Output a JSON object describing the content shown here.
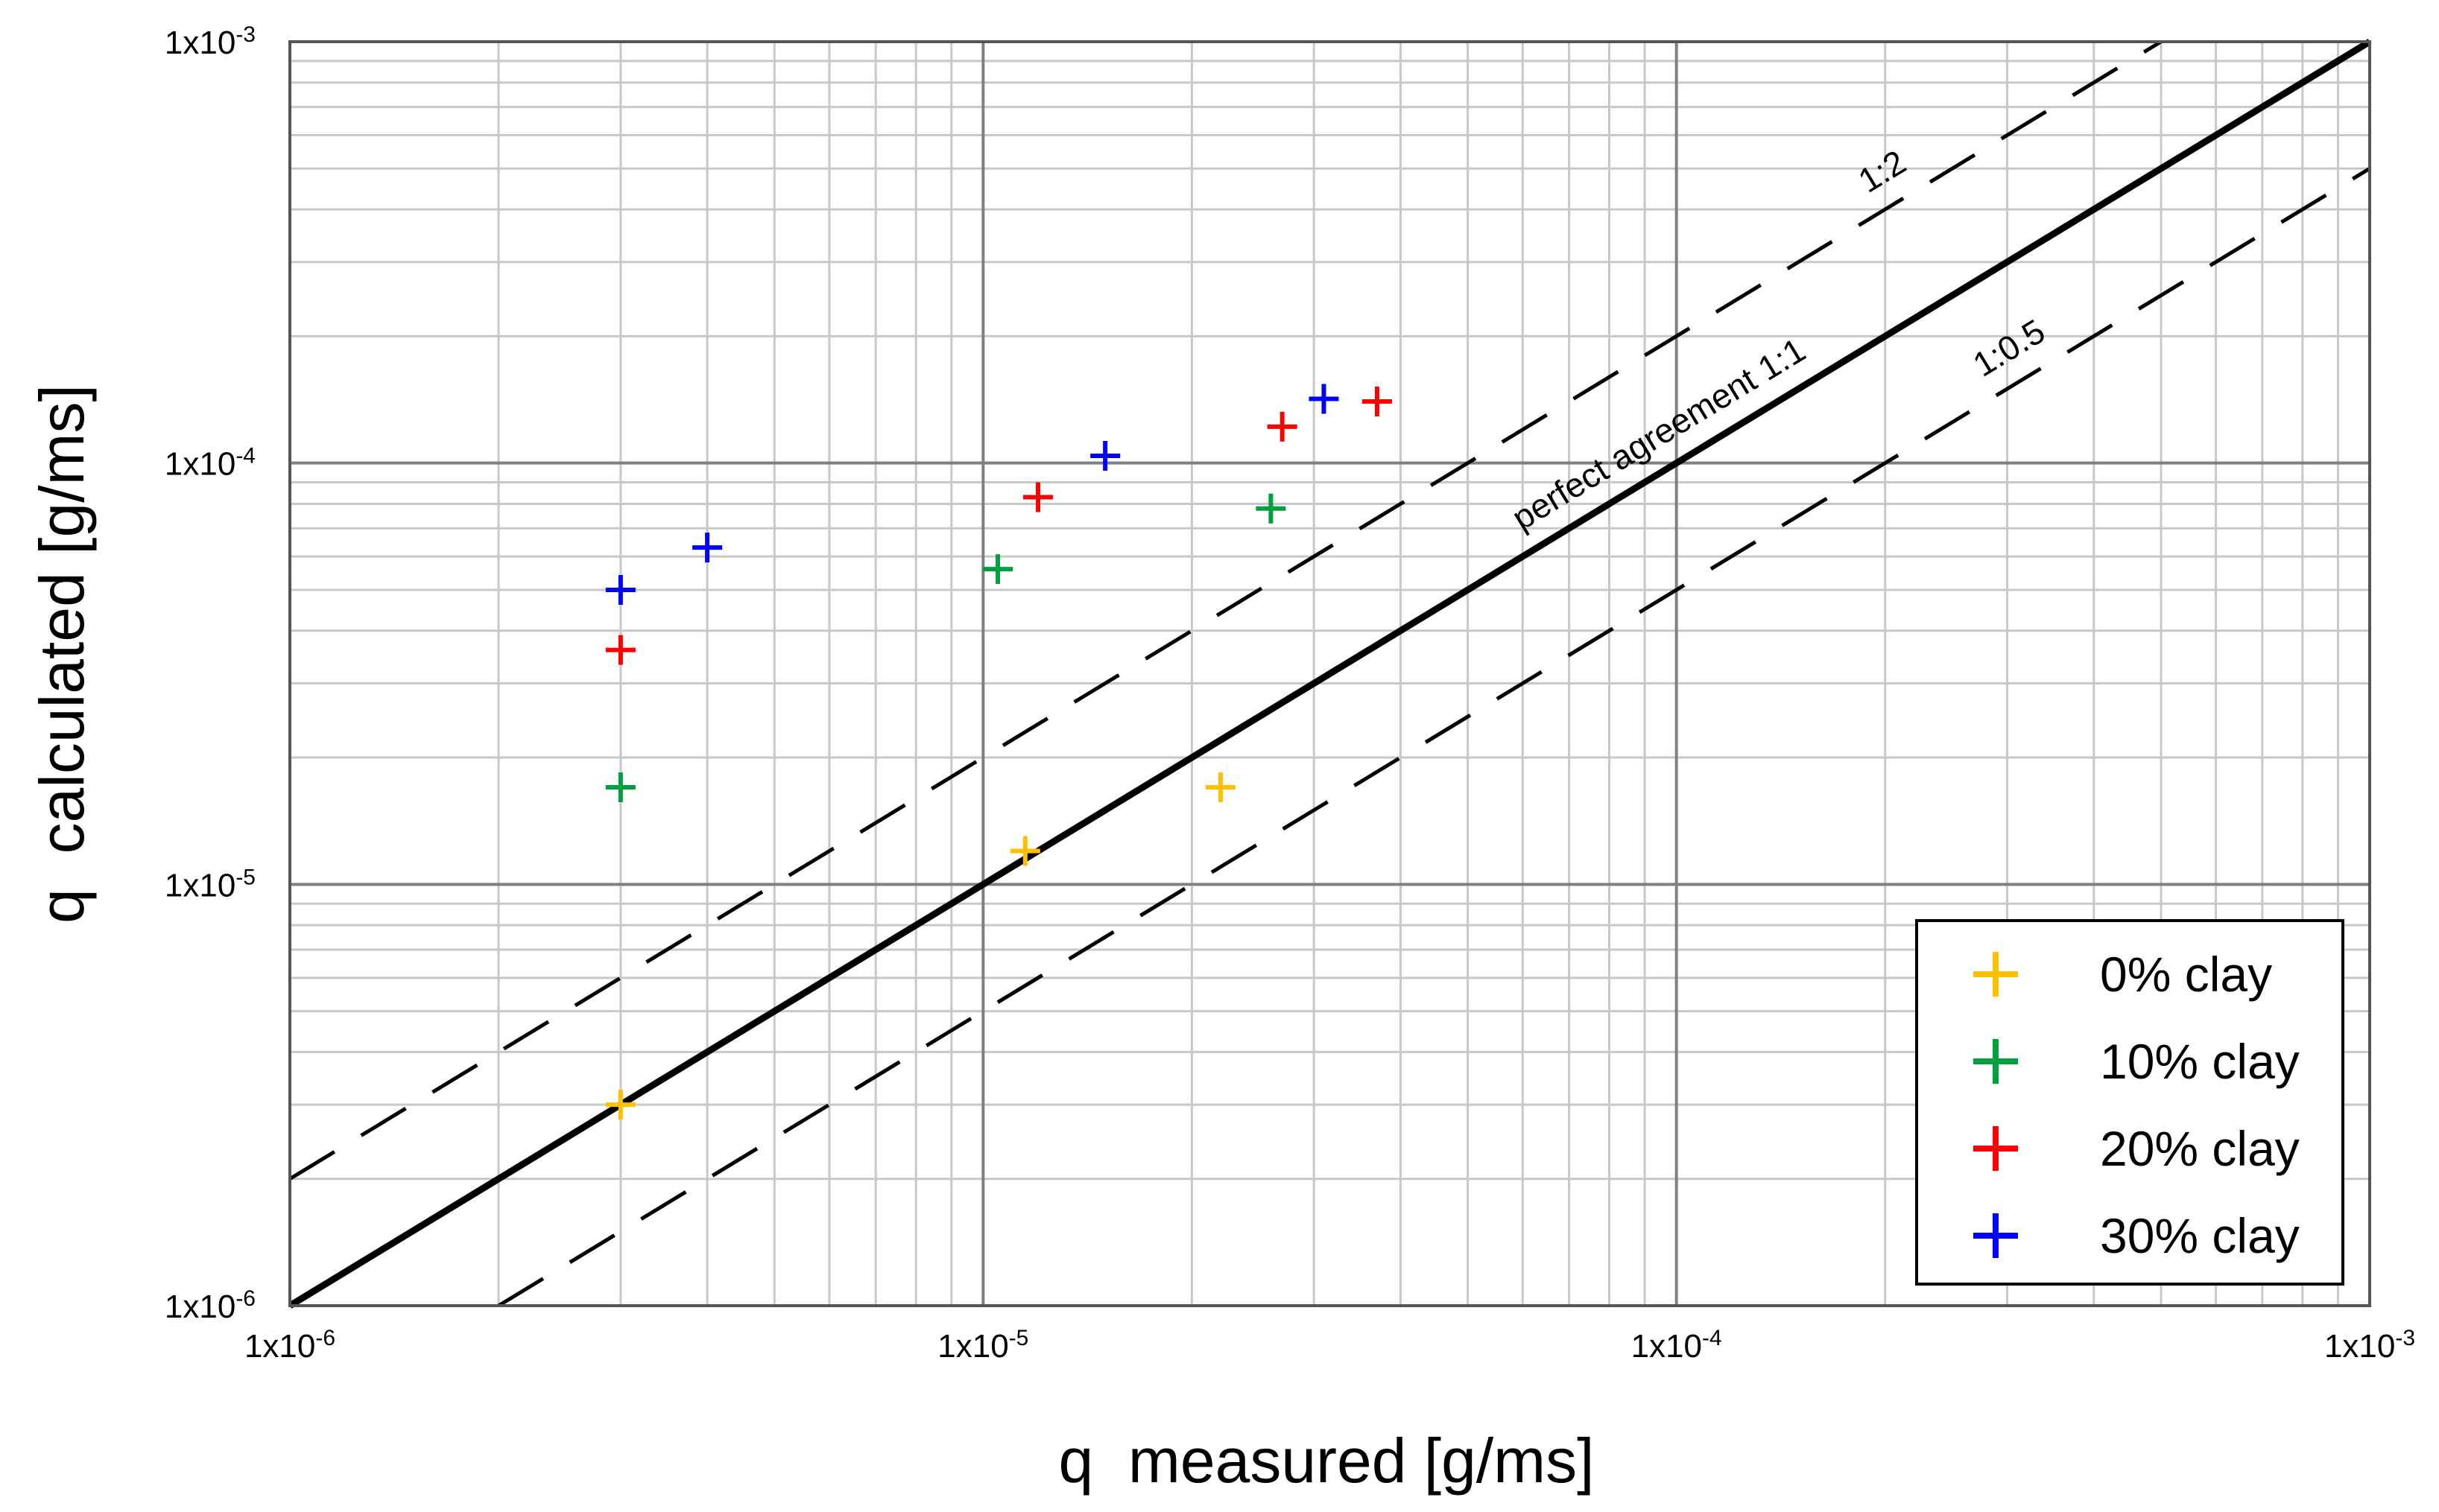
{
  "chart_data": {
    "type": "scatter",
    "xlabel": "q  measured [g/ms]",
    "ylabel": "q  calculated [g/ms]",
    "xscale": "log",
    "yscale": "log",
    "xlim": [
      1e-06,
      0.001
    ],
    "ylim": [
      1e-06,
      0.001
    ],
    "grid": true,
    "legend_position": "bottom-right",
    "x_ticks": [
      {
        "value": 1e-06,
        "base": "1x10",
        "exp": "-6"
      },
      {
        "value": 1e-05,
        "base": "1x10",
        "exp": "-5"
      },
      {
        "value": 0.0001,
        "base": "1x10",
        "exp": "-4"
      },
      {
        "value": 0.001,
        "base": "1x10",
        "exp": "-3"
      }
    ],
    "y_ticks": [
      {
        "value": 1e-06,
        "base": "1x10",
        "exp": "-6"
      },
      {
        "value": 1e-05,
        "base": "1x10",
        "exp": "-5"
      },
      {
        "value": 0.0001,
        "base": "1x10",
        "exp": "-4"
      },
      {
        "value": 0.001,
        "base": "1x10",
        "exp": "-3"
      }
    ],
    "reference_lines": [
      {
        "label": "perfect agreement 1:1",
        "factor": 1,
        "style": "solid",
        "label_x": 0.0001,
        "color": "#000000"
      },
      {
        "label": "1:2",
        "factor": 2,
        "style": "dashed",
        "label_x": 0.00021,
        "color": "#000000"
      },
      {
        "label": "1:0.5",
        "factor": 0.5,
        "style": "dashed",
        "label_x": 0.00032,
        "color": "#000000"
      }
    ],
    "series": [
      {
        "name": "0% clay",
        "color": "#ffc000",
        "points": [
          [
            3e-06,
            3e-06
          ],
          [
            1.15e-05,
            1.2e-05
          ],
          [
            2.2e-05,
            1.7e-05
          ]
        ]
      },
      {
        "name": "10% clay",
        "color": "#00a03c",
        "points": [
          [
            3e-06,
            1.7e-05
          ],
          [
            1.05e-05,
            5.6e-05
          ],
          [
            2.6e-05,
            7.8e-05
          ]
        ]
      },
      {
        "name": "20% clay",
        "color": "#ff0000",
        "points": [
          [
            3e-06,
            3.6e-05
          ],
          [
            1.2e-05,
            8.3e-05
          ],
          [
            2.7e-05,
            0.000122
          ],
          [
            3.7e-05,
            0.00014
          ]
        ]
      },
      {
        "name": "30% clay",
        "color": "#0000ff",
        "points": [
          [
            3e-06,
            5e-05
          ],
          [
            4e-06,
            6.3e-05
          ],
          [
            1.5e-05,
            0.000104
          ],
          [
            3.1e-05,
            0.000142
          ]
        ]
      }
    ]
  }
}
